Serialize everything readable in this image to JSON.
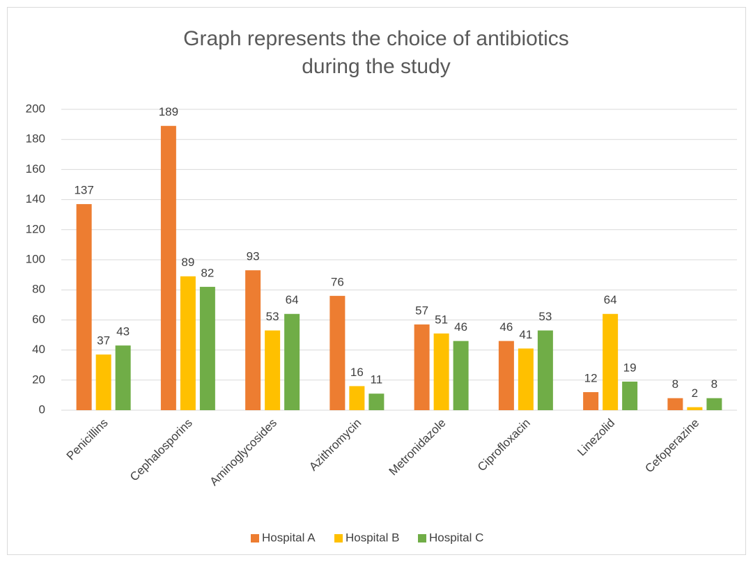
{
  "chart_data": {
    "type": "bar",
    "title": "Graph represents the choice of antibiotics during the study",
    "categories": [
      "Penicillins",
      "Cephalosporins",
      "Aminoglycosides",
      "Azithromycin",
      "Metronidazole",
      "Ciprofloxacin",
      "Linezolid",
      "Cefoperazine"
    ],
    "series": [
      {
        "name": "Hospital A",
        "color": "#ed7d31",
        "values": [
          137,
          189,
          93,
          76,
          57,
          46,
          12,
          8
        ]
      },
      {
        "name": "Hospital B",
        "color": "#ffc000",
        "values": [
          37,
          89,
          53,
          16,
          51,
          41,
          64,
          2
        ]
      },
      {
        "name": "Hospital C",
        "color": "#70ad47",
        "values": [
          43,
          82,
          64,
          11,
          46,
          53,
          19,
          8
        ]
      }
    ],
    "ylim": [
      0,
      200
    ],
    "yticks": [
      0,
      20,
      40,
      60,
      80,
      100,
      120,
      140,
      160,
      180,
      200
    ],
    "grid": true,
    "legend": "bottom"
  }
}
